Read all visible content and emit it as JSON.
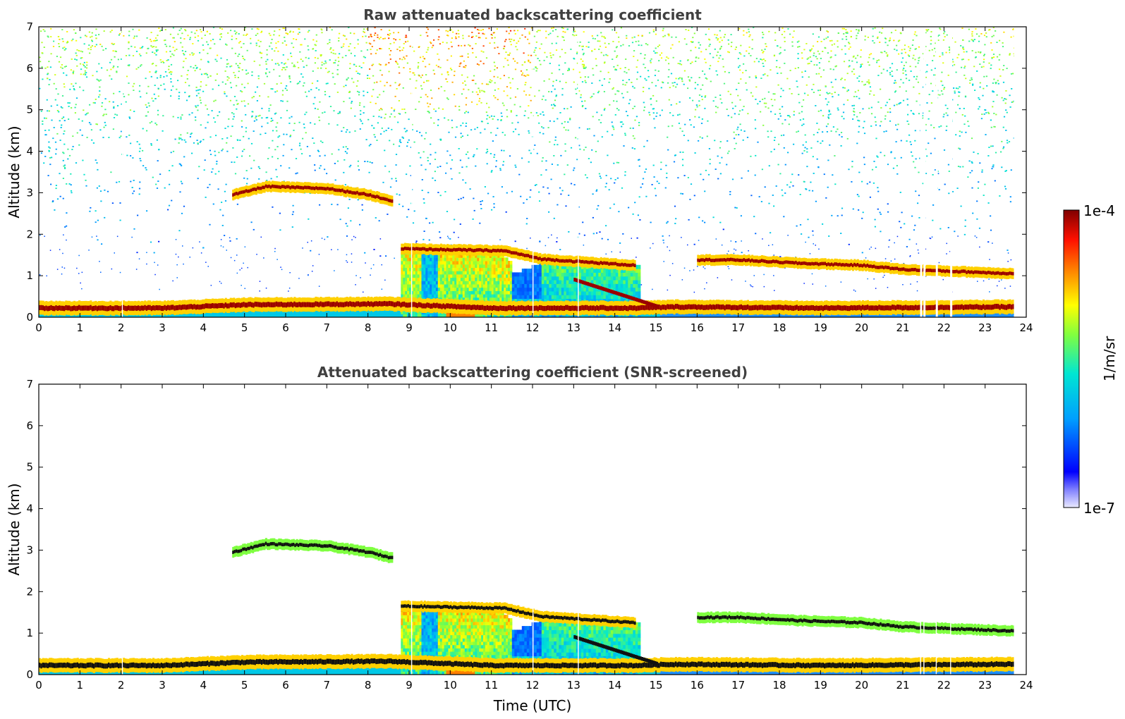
{
  "chart_data": [
    {
      "type": "heatmap",
      "title": "Raw attenuated backscattering coefficient",
      "xlabel": "",
      "ylabel": "Altitude (km)",
      "xlim": [
        0,
        24
      ],
      "ylim": [
        0,
        7
      ],
      "xticks": [
        "0",
        "1",
        "2",
        "3",
        "4",
        "5",
        "6",
        "7",
        "8",
        "9",
        "10",
        "11",
        "12",
        "13",
        "14",
        "15",
        "16",
        "17",
        "18",
        "19",
        "20",
        "21",
        "22",
        "23",
        "24"
      ],
      "yticks": [
        "0",
        "1",
        "2",
        "3",
        "4",
        "5",
        "6",
        "7"
      ],
      "data_end_time": 23.7,
      "screened": false,
      "features": [
        {
          "name": "boundary layer top (strong)",
          "segments": [
            [
              0,
              0.22
            ],
            [
              3,
              0.22
            ],
            [
              5,
              0.3
            ],
            [
              8.5,
              0.32
            ],
            [
              9.5,
              0.28
            ],
            [
              11,
              0.22
            ],
            [
              14.5,
              0.22
            ],
            [
              15.5,
              0.25
            ],
            [
              19,
              0.22
            ],
            [
              23.7,
              0.25
            ]
          ]
        },
        {
          "name": "cloud layer 1 (approx. 1.2-1.6 km)",
          "segments": [
            [
              8.8,
              1.65
            ],
            [
              11.3,
              1.6
            ],
            [
              12.2,
              1.4
            ],
            [
              14,
              1.28
            ],
            [
              14.5,
              1.25
            ]
          ]
        },
        {
          "name": "elevated aerosol (approx. 3 km)",
          "segments": [
            [
              4.7,
              2.95
            ],
            [
              5.5,
              3.15
            ],
            [
              7.0,
              3.1
            ],
            [
              8.0,
              2.95
            ],
            [
              8.6,
              2.8
            ]
          ]
        },
        {
          "name": "cloud layer 2 (approx. 1.1-1.4 km)",
          "segments": [
            [
              16,
              1.38
            ],
            [
              17,
              1.38
            ],
            [
              18.5,
              1.3
            ],
            [
              20,
              1.25
            ],
            [
              21,
              1.15
            ],
            [
              23.7,
              1.05
            ]
          ]
        }
      ]
    },
    {
      "type": "heatmap",
      "title": "Attenuated backscattering coefficient (SNR-screened)",
      "xlabel": "Time (UTC)",
      "ylabel": "Altitude (km)",
      "xlim": [
        0,
        24
      ],
      "ylim": [
        0,
        7
      ],
      "xticks": [
        "0",
        "1",
        "2",
        "3",
        "4",
        "5",
        "6",
        "7",
        "8",
        "9",
        "10",
        "11",
        "12",
        "13",
        "14",
        "15",
        "16",
        "17",
        "18",
        "19",
        "20",
        "21",
        "22",
        "23",
        "24"
      ],
      "yticks": [
        "0",
        "1",
        "2",
        "3",
        "4",
        "5",
        "6",
        "7"
      ],
      "data_end_time": 23.7,
      "screened": true
    }
  ],
  "colorbar": {
    "label": "1/m/sr",
    "min_label": "1e-7",
    "max_label": "1e-4",
    "scale": "log",
    "colormap": [
      "#e6e6fa",
      "#0000ff",
      "#00bfff",
      "#00ffcc",
      "#7fff00",
      "#ffff00",
      "#ff8c00",
      "#ff0000",
      "#8b0000"
    ]
  }
}
